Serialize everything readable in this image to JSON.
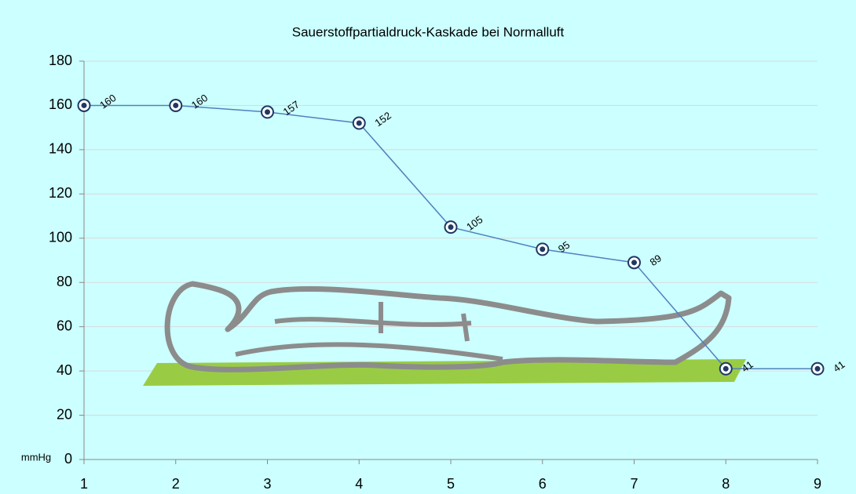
{
  "chart_data": {
    "type": "line",
    "title": "Sauerstoffpartialdruck-Kaskade bei Normalluft",
    "y_label": "mmHg",
    "x": [
      1,
      2,
      3,
      4,
      5,
      6,
      7,
      8,
      9
    ],
    "values": [
      160,
      160,
      157,
      152,
      105,
      95,
      89,
      41,
      41
    ],
    "color": "#4f81bd",
    "marker_color": "#1f3864",
    "xlim": [
      1,
      9
    ],
    "xticks": [
      1,
      2,
      3,
      4,
      5,
      6,
      7,
      8,
      9
    ],
    "ylim": [
      0,
      180
    ],
    "yticks": [
      0,
      20,
      40,
      60,
      80,
      100,
      120,
      140,
      160,
      180
    ],
    "grid": true
  }
}
